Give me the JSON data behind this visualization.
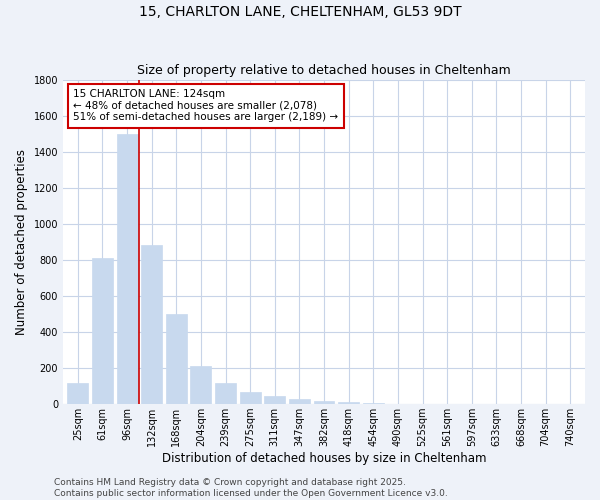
{
  "title": "15, CHARLTON LANE, CHELTENHAM, GL53 9DT",
  "subtitle": "Size of property relative to detached houses in Cheltenham",
  "xlabel": "Distribution of detached houses by size in Cheltenham",
  "ylabel": "Number of detached properties",
  "categories": [
    "25sqm",
    "61sqm",
    "96sqm",
    "132sqm",
    "168sqm",
    "204sqm",
    "239sqm",
    "275sqm",
    "311sqm",
    "347sqm",
    "382sqm",
    "418sqm",
    "454sqm",
    "490sqm",
    "525sqm",
    "561sqm",
    "597sqm",
    "633sqm",
    "668sqm",
    "704sqm",
    "740sqm"
  ],
  "values": [
    120,
    810,
    1500,
    880,
    500,
    210,
    115,
    65,
    45,
    30,
    20,
    10,
    5,
    3,
    2,
    2,
    1,
    1,
    0,
    0,
    0
  ],
  "bar_color": "#c8d9ee",
  "vline_color": "#cc0000",
  "vline_pos": 2.5,
  "annotation_text": "15 CHARLTON LANE: 124sqm\n← 48% of detached houses are smaller (2,078)\n51% of semi-detached houses are larger (2,189) →",
  "annotation_box_facecolor": "#ffffff",
  "annotation_box_edgecolor": "#cc0000",
  "ylim": [
    0,
    1800
  ],
  "yticks": [
    0,
    200,
    400,
    600,
    800,
    1000,
    1200,
    1400,
    1600,
    1800
  ],
  "footer_line1": "Contains HM Land Registry data © Crown copyright and database right 2025.",
  "footer_line2": "Contains public sector information licensed under the Open Government Licence v3.0.",
  "background_color": "#eef2f9",
  "plot_background_color": "#ffffff",
  "grid_color": "#c8d4e8",
  "title_fontsize": 10,
  "subtitle_fontsize": 9,
  "axis_label_fontsize": 8.5,
  "tick_fontsize": 7,
  "annotation_fontsize": 7.5,
  "footer_fontsize": 6.5
}
